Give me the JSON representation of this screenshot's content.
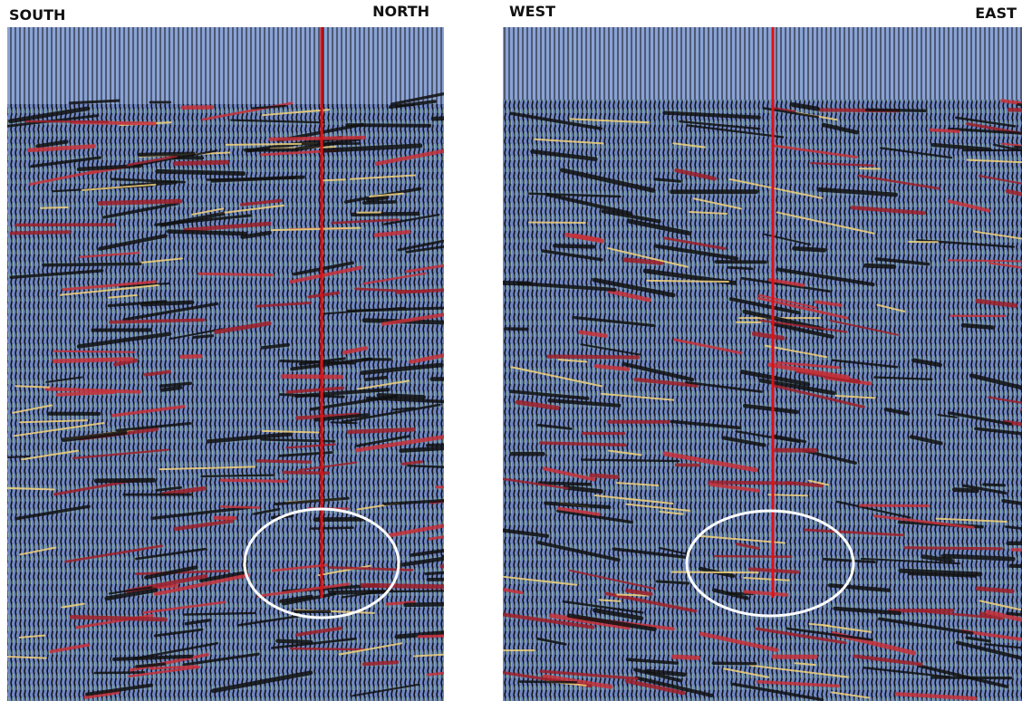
{
  "panels": [
    {
      "left_label": "SOUTH",
      "right_label": "NORTH"
    },
    {
      "left_label": "WEST",
      "right_label": "EAST"
    }
  ]
}
